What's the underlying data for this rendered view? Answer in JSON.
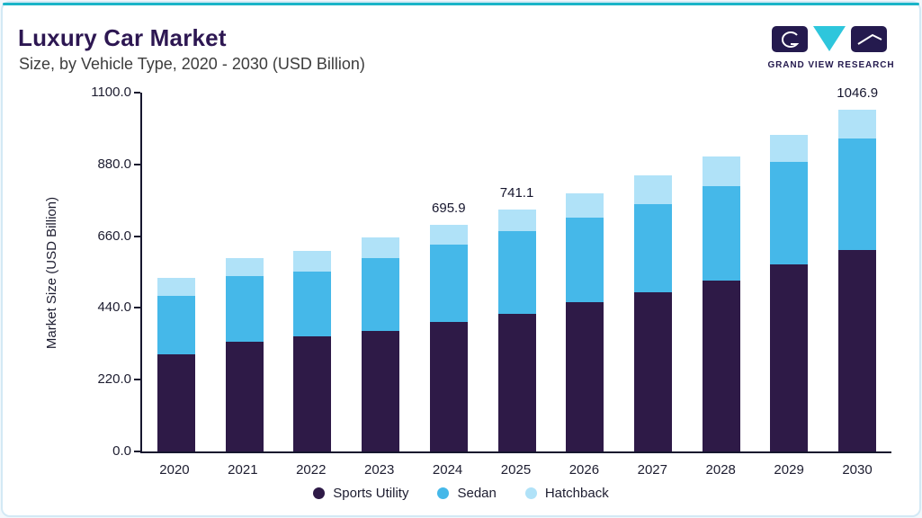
{
  "header": {
    "title": "Luxury Car Market",
    "subtitle": "Size, by Vehicle Type, 2020 - 2030 (USD Billion)",
    "logo_text": "GRAND VIEW RESEARCH"
  },
  "colors": {
    "accent_top": "#1ab4c8",
    "title": "#2d1752",
    "subtitle": "#3d3d3d",
    "axis": "#16162e",
    "card_border": "#d3e9f5",
    "logo_dark": "#241a4e",
    "logo_cyan": "#2ec6dc"
  },
  "chart_data": {
    "type": "bar",
    "stacked": true,
    "title": "Luxury Car Market Size, by Vehicle Type, 2020 - 2030 (USD Billion)",
    "xlabel": "",
    "ylabel": "Market Size (USD Billion)",
    "ylim": [
      0,
      1100
    ],
    "yticks": [
      "0.0",
      "220.0",
      "440.0",
      "660.0",
      "880.0",
      "1100.0"
    ],
    "grid": false,
    "legend_position": "bottom",
    "categories": [
      "2020",
      "2021",
      "2022",
      "2023",
      "2024",
      "2025",
      "2026",
      "2027",
      "2028",
      "2029",
      "2030"
    ],
    "series": [
      {
        "name": "Sports Utility",
        "color": "#2e1a47",
        "values": [
          298,
          336,
          353,
          369,
          397,
          422,
          458,
          488,
          524,
          573,
          618
        ]
      },
      {
        "name": "Sedan",
        "color": "#45b8e9",
        "values": [
          179,
          202,
          198,
          224,
          237,
          253,
          259,
          270,
          289,
          315,
          341
        ]
      },
      {
        "name": "Hatchback",
        "color": "#b0e2f8",
        "values": [
          55,
          55,
          64,
          62,
          61.9,
          66.1,
          74,
          88,
          91,
          82,
          87.9
        ]
      }
    ],
    "bar_labels": [
      null,
      null,
      null,
      null,
      "695.9",
      "741.1",
      null,
      null,
      null,
      null,
      "1046.9"
    ],
    "totals": [
      532,
      593,
      615,
      655,
      695.9,
      741.1,
      791,
      846,
      904,
      970,
      1046.9
    ]
  }
}
